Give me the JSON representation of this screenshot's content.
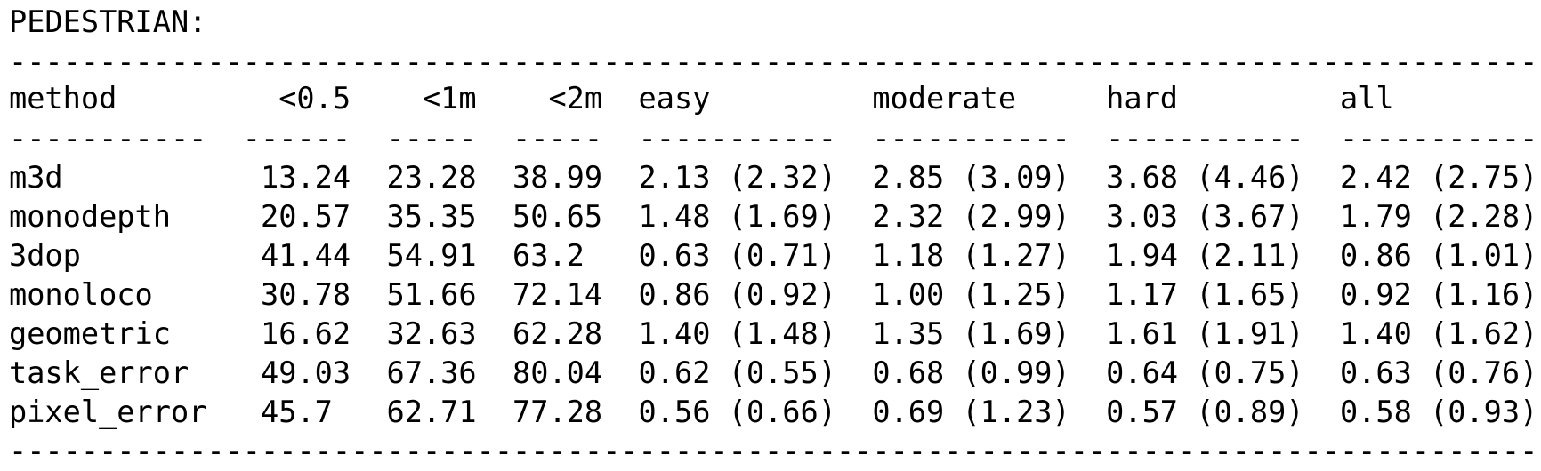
{
  "title": "PEDESTRIAN:",
  "separator": "-------------------------------------------------------------------------------------",
  "header": [
    "method",
    "<0.5",
    "<1m",
    "<2m",
    "easy",
    "moderate",
    "hard",
    "all"
  ],
  "underline": [
    "-----------",
    "------",
    "-----",
    "-----",
    "-----------",
    "-----------",
    "-----------",
    "-----------"
  ],
  "rows": [
    [
      "m3d",
      "13.24",
      "23.28",
      "38.99",
      "2.13 (2.32)",
      "2.85 (3.09)",
      "3.68 (4.46)",
      "2.42 (2.75)"
    ],
    [
      "monodepth",
      "20.57",
      "35.35",
      "50.65",
      "1.48 (1.69)",
      "2.32 (2.99)",
      "3.03 (3.67)",
      "1.79 (2.28)"
    ],
    [
      "3dop",
      "41.44",
      "54.91",
      "63.2",
      "0.63 (0.71)",
      "1.18 (1.27)",
      "1.94 (2.11)",
      "0.86 (1.01)"
    ],
    [
      "monoloco",
      "30.78",
      "51.66",
      "72.14",
      "0.86 (0.92)",
      "1.00 (1.25)",
      "1.17 (1.65)",
      "0.92 (1.16)"
    ],
    [
      "geometric",
      "16.62",
      "32.63",
      "62.28",
      "1.40 (1.48)",
      "1.35 (1.69)",
      "1.61 (1.91)",
      "1.40 (1.62)"
    ],
    [
      "task_error",
      "49.03",
      "67.36",
      "80.04",
      "0.62 (0.55)",
      "0.68 (0.99)",
      "0.64 (0.75)",
      "0.63 (0.76)"
    ],
    [
      "pixel_error",
      "45.7",
      "62.71",
      "77.28",
      "0.56 (0.66)",
      "0.69 (1.23)",
      "0.57 (0.89)",
      "0.58 (0.93)"
    ]
  ]
}
